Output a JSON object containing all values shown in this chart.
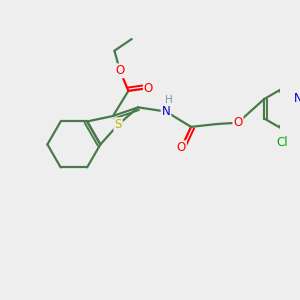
{
  "background_color": "#eeeeee",
  "bond_color": "#4a7a4a",
  "atom_colors": {
    "O": "#ff0000",
    "N": "#0000cc",
    "S": "#bbbb00",
    "Cl": "#00aa00",
    "H": "#7a9a9a",
    "C": "#4a7a4a"
  },
  "figsize": [
    3.0,
    3.0
  ],
  "dpi": 100
}
